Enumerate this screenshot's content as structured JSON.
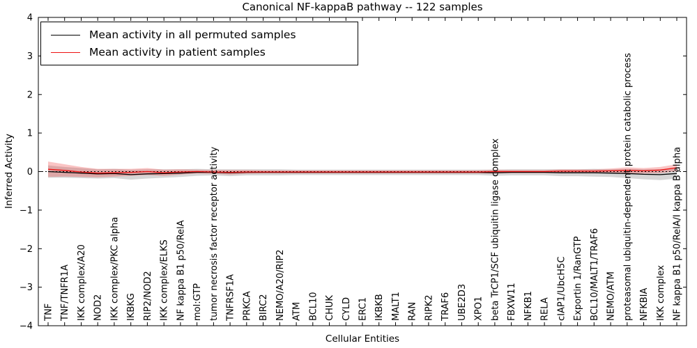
{
  "title": "Canonical NF-kappaB pathway -- 122 samples",
  "chart_data": {
    "type": "line",
    "title": "Canonical NF-kappaB pathway -- 122 samples",
    "xlabel": "Cellular Entities",
    "ylabel": "Inferred Activity",
    "ylim": [
      -4,
      4
    ],
    "yticks": [
      -4,
      -3,
      -2,
      -1,
      0,
      1,
      2,
      3,
      4
    ],
    "grid": false,
    "zero_line": true,
    "legend_position": "upper left",
    "categories": [
      "TNF",
      "TNF/TNFR1A",
      "IKK complex/A20",
      "NOD2",
      "IKK complex/PKC alpha",
      "IKBKG",
      "RIP2/NOD2",
      "IKK complex/ELKS",
      "NF kappa B1 p50/RelA",
      "mol:GTP",
      "tumor necrosis factor receptor activity",
      "TNFRSF1A",
      "PRKCA",
      "BIRC2",
      "NEMO/A20/RIP2",
      "ATM",
      "BCL10",
      "CHUK",
      "CYLD",
      "ERC1",
      "IKBKB",
      "MALT1",
      "RAN",
      "RIPK2",
      "TRAF6",
      "UBE2D3",
      "XPO1",
      "beta TrCP1/SCF ubiquitin ligase complex",
      "FBXW11",
      "NFKB1",
      "RELA",
      "cIAP1/UbcH5C",
      "Exportin 1/RanGTP",
      "BCL10/MALT1/TRAF6",
      "NEMO/ATM",
      "proteasomal ubiquitin-dependent protein catabolic process",
      "NFKBIA",
      "IKK complex",
      "NF kappa B1 p50/RelA/I kappa B alpha"
    ],
    "series": [
      {
        "key": "permuted",
        "name": "Mean activity in all permuted samples",
        "color": "#000000",
        "band_color": "rgba(120,120,120,0.30)",
        "values": [
          0.0,
          -0.02,
          -0.04,
          -0.06,
          -0.05,
          -0.08,
          -0.06,
          -0.05,
          -0.04,
          -0.02,
          -0.02,
          -0.03,
          -0.02,
          -0.02,
          -0.02,
          -0.02,
          -0.02,
          -0.02,
          -0.02,
          -0.02,
          -0.02,
          -0.02,
          -0.02,
          -0.02,
          -0.02,
          -0.02,
          -0.02,
          -0.03,
          -0.02,
          -0.02,
          -0.02,
          -0.03,
          -0.03,
          -0.03,
          -0.04,
          -0.05,
          -0.07,
          -0.08,
          -0.05
        ],
        "band": [
          0.16,
          0.14,
          0.13,
          0.12,
          0.12,
          0.13,
          0.12,
          0.11,
          0.1,
          0.09,
          0.08,
          0.09,
          0.08,
          0.08,
          0.08,
          0.07,
          0.07,
          0.07,
          0.07,
          0.07,
          0.07,
          0.07,
          0.07,
          0.07,
          0.07,
          0.07,
          0.07,
          0.08,
          0.08,
          0.08,
          0.08,
          0.09,
          0.09,
          0.1,
          0.1,
          0.12,
          0.13,
          0.14,
          0.13
        ]
      },
      {
        "key": "patient",
        "name": "Mean activity in patient samples",
        "color": "#ee1111",
        "band_color": "rgba(240,60,60,0.30)",
        "values": [
          0.06,
          0.03,
          -0.01,
          -0.04,
          -0.03,
          -0.02,
          0.0,
          -0.03,
          -0.01,
          0.0,
          -0.01,
          -0.02,
          -0.01,
          -0.01,
          -0.01,
          -0.01,
          -0.01,
          -0.01,
          -0.01,
          -0.01,
          -0.01,
          -0.01,
          -0.01,
          -0.01,
          -0.01,
          -0.01,
          -0.01,
          0.0,
          0.0,
          0.0,
          0.0,
          0.01,
          0.01,
          0.01,
          0.02,
          0.03,
          0.02,
          0.04,
          0.1
        ],
        "band": [
          0.2,
          0.16,
          0.13,
          0.11,
          0.1,
          0.09,
          0.09,
          0.08,
          0.07,
          0.05,
          0.05,
          0.06,
          0.05,
          0.04,
          0.04,
          0.04,
          0.04,
          0.04,
          0.04,
          0.04,
          0.04,
          0.04,
          0.04,
          0.04,
          0.04,
          0.04,
          0.04,
          0.05,
          0.04,
          0.04,
          0.04,
          0.05,
          0.05,
          0.05,
          0.06,
          0.08,
          0.07,
          0.08,
          0.09
        ]
      }
    ]
  }
}
